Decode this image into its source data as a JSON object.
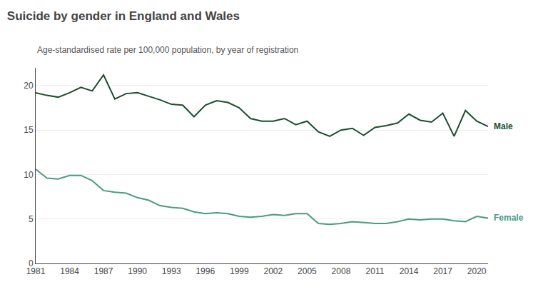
{
  "chart_data": {
    "type": "line",
    "title": "Suicide by gender in England and Wales",
    "subtitle": "Age-standardised rate per 100,000 population, by year of registration",
    "x": [
      1981,
      1982,
      1983,
      1984,
      1985,
      1986,
      1987,
      1988,
      1989,
      1990,
      1991,
      1992,
      1993,
      1994,
      1995,
      1996,
      1997,
      1998,
      1999,
      2000,
      2001,
      2002,
      2003,
      2004,
      2005,
      2006,
      2007,
      2008,
      2009,
      2010,
      2011,
      2012,
      2013,
      2014,
      2015,
      2016,
      2017,
      2018,
      2019,
      2020,
      2021
    ],
    "series": [
      {
        "name": "Male",
        "color": "#1a4d2e",
        "values": [
          19.2,
          18.9,
          18.7,
          19.2,
          19.8,
          19.4,
          21.2,
          18.5,
          19.1,
          19.2,
          18.8,
          18.4,
          17.9,
          17.8,
          16.5,
          17.8,
          18.3,
          18.1,
          17.5,
          16.3,
          16.0,
          16.0,
          16.3,
          15.6,
          16.0,
          14.8,
          14.3,
          15.0,
          15.2,
          14.4,
          15.3,
          15.5,
          15.8,
          16.8,
          16.1,
          15.9,
          16.9,
          14.3,
          17.2,
          16.0,
          15.4
        ]
      },
      {
        "name": "Female",
        "color": "#4a9b7f",
        "values": [
          10.6,
          9.6,
          9.5,
          9.9,
          9.9,
          9.3,
          8.2,
          8.0,
          7.9,
          7.4,
          7.1,
          6.5,
          6.3,
          6.2,
          5.8,
          5.6,
          5.7,
          5.6,
          5.3,
          5.2,
          5.3,
          5.5,
          5.4,
          5.6,
          5.6,
          4.5,
          4.4,
          4.5,
          4.7,
          4.6,
          4.5,
          4.5,
          4.7,
          5.0,
          4.9,
          5.0,
          5.0,
          4.8,
          4.7,
          5.3,
          5.1
        ]
      }
    ],
    "xlim": [
      1981,
      2021
    ],
    "xticks": [
      1981,
      1984,
      1987,
      1990,
      1993,
      1996,
      1999,
      2002,
      2005,
      2008,
      2011,
      2014,
      2017,
      2020
    ],
    "ylim": [
      0,
      22
    ],
    "yticks": [
      0,
      5,
      10,
      15,
      20
    ],
    "grid": true
  }
}
